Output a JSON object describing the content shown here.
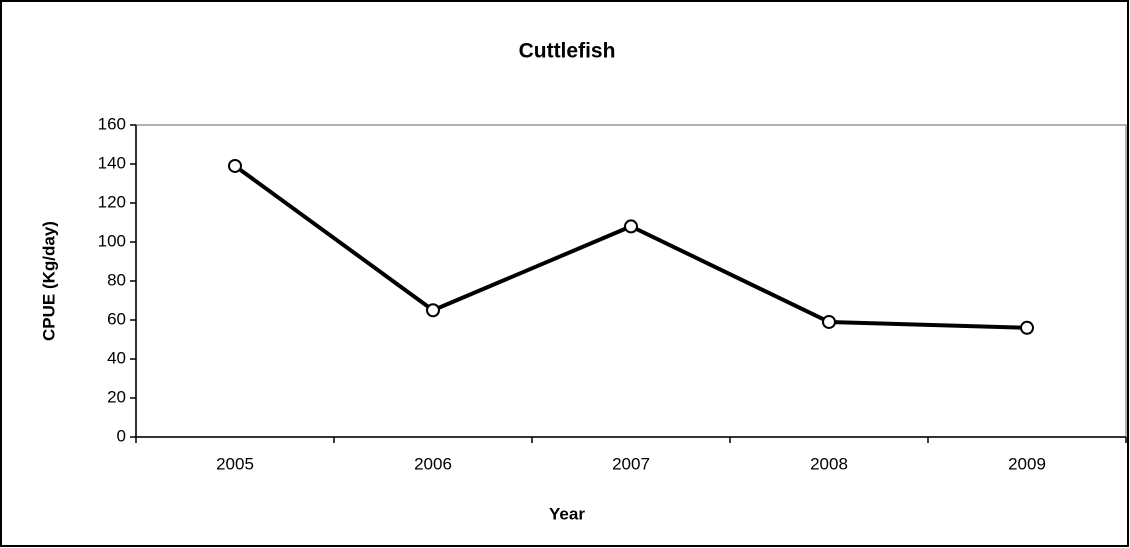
{
  "chart_data": {
    "type": "line",
    "title": "Cuttlefish",
    "x_label": "Year",
    "y_label": "CPUE (Kg/day)",
    "categories": [
      "2005",
      "2006",
      "2007",
      "2008",
      "2009"
    ],
    "series": [
      {
        "name": "Cuttlefish",
        "color": "#000000",
        "values": [
          139,
          65,
          108,
          59,
          56
        ]
      }
    ],
    "ylim": [
      0,
      160
    ],
    "yticks": [
      0,
      20,
      40,
      60,
      80,
      100,
      120,
      140,
      160
    ],
    "grid": false
  }
}
